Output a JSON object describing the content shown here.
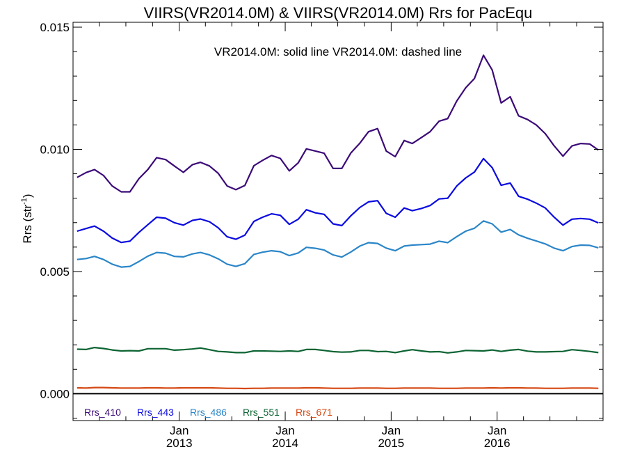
{
  "chart_data": {
    "type": "line",
    "title": "VIIRS(VR2014.0M) & VIIRS(VR2014.0M)  Rrs for PacEqu",
    "ylabel": "Rrs (str",
    "ylabel_sup": "-1",
    "ylabel_suffix": ")",
    "annotation": "VR2014.0M: solid line   VR2014.0M: dashed line",
    "xlim": [
      "2012-01-01",
      "2016-12-31"
    ],
    "ylim": [
      -0.0011,
      0.0152
    ],
    "yticks": [
      {
        "value": 0.0,
        "label": "0.000"
      },
      {
        "value": 0.005,
        "label": "0.005"
      },
      {
        "value": 0.01,
        "label": "0.010"
      },
      {
        "value": 0.015,
        "label": "0.015"
      }
    ],
    "xticks": [
      {
        "date": "2013-01-01",
        "month": "Jan",
        "year": "2013"
      },
      {
        "date": "2014-01-01",
        "month": "Jan",
        "year": "2014"
      },
      {
        "date": "2015-01-01",
        "month": "Jan",
        "year": "2015"
      },
      {
        "date": "2016-01-01",
        "month": "Jan",
        "year": "2016"
      }
    ],
    "zero_line": true,
    "legend_position": "bottom-left",
    "x": [
      "2012-01",
      "2012-02",
      "2012-03",
      "2012-04",
      "2012-05",
      "2012-06",
      "2012-07",
      "2012-08",
      "2012-09",
      "2012-10",
      "2012-11",
      "2012-12",
      "2013-01",
      "2013-02",
      "2013-03",
      "2013-04",
      "2013-05",
      "2013-06",
      "2013-07",
      "2013-08",
      "2013-09",
      "2013-10",
      "2013-11",
      "2013-12",
      "2014-01",
      "2014-02",
      "2014-03",
      "2014-04",
      "2014-05",
      "2014-06",
      "2014-07",
      "2014-08",
      "2014-09",
      "2014-10",
      "2014-11",
      "2014-12",
      "2015-01",
      "2015-02",
      "2015-03",
      "2015-04",
      "2015-05",
      "2015-06",
      "2015-07",
      "2015-08",
      "2015-09",
      "2015-10",
      "2015-11",
      "2015-12",
      "2016-01",
      "2016-02",
      "2016-03",
      "2016-04",
      "2016-05",
      "2016-06",
      "2016-07",
      "2016-08",
      "2016-09",
      "2016-10",
      "2016-11",
      "2016-12"
    ],
    "series": [
      {
        "name": "Rrs_410",
        "color": "#3b0a78",
        "values": [
          0.00885,
          0.00905,
          0.00917,
          0.00893,
          0.0085,
          0.00826,
          0.00826,
          0.0088,
          0.00918,
          0.00966,
          0.00958,
          0.00932,
          0.00906,
          0.00937,
          0.00947,
          0.00932,
          0.00902,
          0.0085,
          0.00835,
          0.00852,
          0.00933,
          0.00955,
          0.00975,
          0.00963,
          0.00912,
          0.00945,
          0.01002,
          0.00993,
          0.00984,
          0.00922,
          0.00922,
          0.00985,
          0.01025,
          0.01072,
          0.01085,
          0.00993,
          0.0097,
          0.01036,
          0.01024,
          0.01048,
          0.01072,
          0.01115,
          0.01126,
          0.01198,
          0.01252,
          0.0129,
          0.01385,
          0.01325,
          0.0119,
          0.01215,
          0.01137,
          0.01122,
          0.011,
          0.01064,
          0.01015,
          0.00972,
          0.01014,
          0.01024,
          0.01022,
          0.00997
        ]
      },
      {
        "name": "Rrs_443",
        "color": "#0a0ae0",
        "values": [
          0.00665,
          0.00676,
          0.00686,
          0.00665,
          0.00637,
          0.00619,
          0.00624,
          0.0066,
          0.00692,
          0.00722,
          0.00718,
          0.007,
          0.0069,
          0.00709,
          0.00715,
          0.00704,
          0.00679,
          0.00642,
          0.00632,
          0.00649,
          0.00705,
          0.00722,
          0.00736,
          0.0073,
          0.00693,
          0.00714,
          0.00753,
          0.0074,
          0.00734,
          0.00695,
          0.00688,
          0.00728,
          0.00762,
          0.00785,
          0.0079,
          0.00738,
          0.00722,
          0.0076,
          0.00749,
          0.00758,
          0.0077,
          0.00797,
          0.008,
          0.0085,
          0.00883,
          0.00907,
          0.00962,
          0.00925,
          0.00853,
          0.00862,
          0.00808,
          0.00796,
          0.0078,
          0.0076,
          0.00723,
          0.0069,
          0.00714,
          0.00717,
          0.00714,
          0.00699
        ]
      },
      {
        "name": "Rrs_486",
        "color": "#2b86c8",
        "values": [
          0.00549,
          0.00553,
          0.00562,
          0.00549,
          0.0053,
          0.00518,
          0.00521,
          0.00541,
          0.00563,
          0.00578,
          0.00575,
          0.00562,
          0.0056,
          0.00572,
          0.00578,
          0.00568,
          0.00552,
          0.0053,
          0.00521,
          0.00532,
          0.0057,
          0.00579,
          0.00585,
          0.00581,
          0.00565,
          0.00576,
          0.00599,
          0.00595,
          0.00588,
          0.00568,
          0.00559,
          0.0058,
          0.00604,
          0.00618,
          0.00615,
          0.00596,
          0.00585,
          0.00604,
          0.00608,
          0.0061,
          0.00612,
          0.00624,
          0.00618,
          0.00643,
          0.00665,
          0.00677,
          0.00707,
          0.00695,
          0.00661,
          0.00672,
          0.0065,
          0.00636,
          0.00625,
          0.00613,
          0.00596,
          0.00585,
          0.00602,
          0.00608,
          0.00607,
          0.00597
        ]
      },
      {
        "name": "Rrs_551",
        "color": "#0d6433",
        "values": [
          0.00182,
          0.00181,
          0.00189,
          0.00185,
          0.00179,
          0.00175,
          0.00176,
          0.00175,
          0.00184,
          0.00184,
          0.00184,
          0.00178,
          0.0018,
          0.00183,
          0.00187,
          0.0018,
          0.00173,
          0.00171,
          0.00168,
          0.00168,
          0.00175,
          0.00175,
          0.00174,
          0.00173,
          0.00175,
          0.00173,
          0.00181,
          0.00181,
          0.00177,
          0.00172,
          0.0017,
          0.00171,
          0.00177,
          0.00177,
          0.00172,
          0.00173,
          0.00168,
          0.00175,
          0.0018,
          0.00175,
          0.00171,
          0.00172,
          0.00167,
          0.00171,
          0.00177,
          0.00176,
          0.00175,
          0.00179,
          0.00173,
          0.00178,
          0.00181,
          0.00174,
          0.00171,
          0.00171,
          0.00172,
          0.00173,
          0.0018,
          0.00177,
          0.00173,
          0.00168
        ]
      },
      {
        "name": "Rrs_671",
        "color": "#d54712",
        "values": [
          0.00024,
          0.00023,
          0.00025,
          0.00025,
          0.00024,
          0.00023,
          0.00023,
          0.00023,
          0.00024,
          0.00024,
          0.00023,
          0.00023,
          0.00024,
          0.00024,
          0.00024,
          0.00024,
          0.00023,
          0.00022,
          0.00022,
          0.00021,
          0.00022,
          0.00022,
          0.00023,
          0.00023,
          0.00023,
          0.00023,
          0.00024,
          0.00024,
          0.00023,
          0.00022,
          0.00022,
          0.00022,
          0.00023,
          0.00023,
          0.00023,
          0.00022,
          0.00022,
          0.00023,
          0.00023,
          0.00023,
          0.00023,
          0.00022,
          0.00022,
          0.00022,
          0.00023,
          0.00023,
          0.00023,
          0.00024,
          0.00023,
          0.00024,
          0.00024,
          0.00023,
          0.00023,
          0.00022,
          0.00022,
          0.00022,
          0.00023,
          0.00023,
          0.00023,
          0.00022
        ]
      }
    ]
  }
}
